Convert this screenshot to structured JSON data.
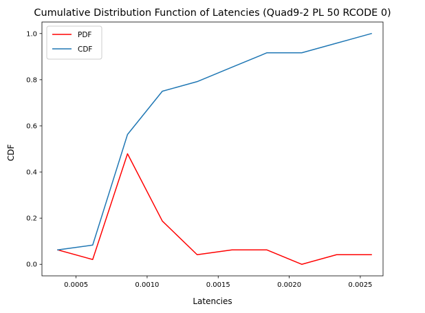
{
  "chart_data": {
    "type": "line",
    "title": "Cumulative Distribution Function of Latencies (Quad9-2 PL 50 RCODE 0)",
    "xlabel": "Latencies",
    "ylabel": "CDF",
    "xlim": [
      0.00026,
      0.00266
    ],
    "ylim": [
      -0.05,
      1.05
    ],
    "xticks": [
      0.0005,
      0.001,
      0.0015,
      0.002,
      0.0025
    ],
    "xtick_labels": [
      "0.0005",
      "0.0010",
      "0.0015",
      "0.0020",
      "0.0025"
    ],
    "yticks": [
      0.0,
      0.2,
      0.4,
      0.6,
      0.8,
      1.0
    ],
    "ytick_labels": [
      "0.0",
      "0.2",
      "0.4",
      "0.6",
      "0.8",
      "1.0"
    ],
    "grid": false,
    "legend_position": "top-left",
    "x": [
      0.000371,
      0.000617,
      0.000862,
      0.001107,
      0.001352,
      0.001597,
      0.001843,
      0.002088,
      0.002333,
      0.002578
    ],
    "series": [
      {
        "name": "PDF",
        "color": "#ff0000",
        "values": [
          0.0625,
          0.0208,
          0.4792,
          0.1875,
          0.0417,
          0.0625,
          0.0625,
          0.0,
          0.0417,
          0.0417
        ]
      },
      {
        "name": "CDF",
        "color": "#1f77b4",
        "values": [
          0.0625,
          0.0833,
          0.5625,
          0.75,
          0.7917,
          0.8542,
          0.9167,
          0.9167,
          0.9583,
          1.0
        ]
      }
    ]
  }
}
